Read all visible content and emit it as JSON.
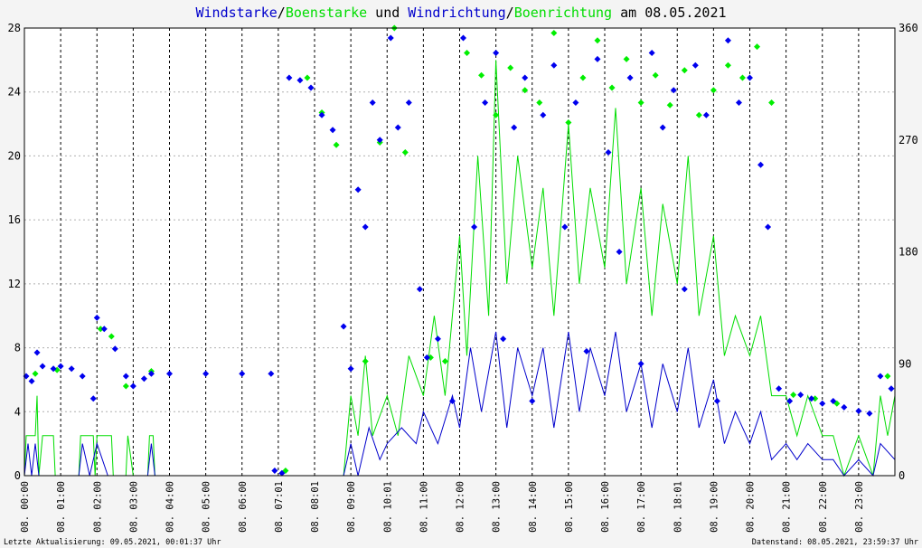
{
  "chart_data": {
    "type": "line",
    "title_parts": [
      {
        "text": "Windstarke",
        "color": "#0000cc"
      },
      {
        "text": "/",
        "color": "#000000"
      },
      {
        "text": "Boenstarke",
        "color": "#00dd00"
      },
      {
        "text": " und ",
        "color": "#000000"
      },
      {
        "text": "Windrichtung",
        "color": "#0000cc"
      },
      {
        "text": "/",
        "color": "#000000"
      },
      {
        "text": "Boenrichtung",
        "color": "#00dd00"
      },
      {
        "text": " am 08.05.2021",
        "color": "#000000"
      }
    ],
    "left_axis": {
      "min": 0,
      "max": 28,
      "ticks": [
        "0",
        "4",
        "8",
        "12",
        "16",
        "20",
        "24",
        "28"
      ]
    },
    "right_axis": {
      "min": 0,
      "max": 360,
      "ticks": [
        "0",
        "90",
        "180",
        "270",
        "360"
      ]
    },
    "x_range_hours": [
      0,
      24
    ],
    "x_ticks": [
      {
        "h": 0.0,
        "label": "08. 00:00"
      },
      {
        "h": 1.0,
        "label": "08. 01:00"
      },
      {
        "h": 2.0,
        "label": "08. 02:00"
      },
      {
        "h": 3.0,
        "label": "08. 03:00"
      },
      {
        "h": 4.0,
        "label": "08. 04:00"
      },
      {
        "h": 5.0,
        "label": "08. 05:00"
      },
      {
        "h": 6.0,
        "label": "08. 06:00"
      },
      {
        "h": 7.0,
        "label": "08. 07:01"
      },
      {
        "h": 8.0,
        "label": "08. 08:01"
      },
      {
        "h": 9.0,
        "label": "08. 09:00"
      },
      {
        "h": 10.0,
        "label": "08. 10:01"
      },
      {
        "h": 11.0,
        "label": "08. 11:00"
      },
      {
        "h": 12.0,
        "label": "08. 12:00"
      },
      {
        "h": 13.0,
        "label": "08. 13:00"
      },
      {
        "h": 14.0,
        "label": "08. 14:00"
      },
      {
        "h": 15.0,
        "label": "08. 15:00"
      },
      {
        "h": 16.0,
        "label": "08. 16:00"
      },
      {
        "h": 17.0,
        "label": "08. 17:00"
      },
      {
        "h": 18.0,
        "label": "08. 18:01"
      },
      {
        "h": 19.0,
        "label": "08. 19:00"
      },
      {
        "h": 20.0,
        "label": "08. 20:00"
      },
      {
        "h": 21.0,
        "label": "08. 21:00"
      },
      {
        "h": 22.0,
        "label": "08. 22:00"
      },
      {
        "h": 23.0,
        "label": "08. 23:00"
      }
    ],
    "grid": true,
    "series": [
      {
        "key": "gust_speed",
        "color": "#00dd00",
        "style": "line",
        "axis": "left",
        "points": [
          [
            0,
            0
          ],
          [
            0.05,
            2.5
          ],
          [
            0.3,
            2.5
          ],
          [
            0.35,
            5
          ],
          [
            0.4,
            0
          ],
          [
            0.5,
            2.5
          ],
          [
            0.8,
            2.5
          ],
          [
            0.85,
            0
          ],
          [
            1.5,
            0
          ],
          [
            1.55,
            2.5
          ],
          [
            1.9,
            2.5
          ],
          [
            1.95,
            0
          ],
          [
            2.0,
            2.5
          ],
          [
            2.4,
            2.5
          ],
          [
            2.45,
            0
          ],
          [
            2.8,
            0
          ],
          [
            2.85,
            2.5
          ],
          [
            3.0,
            0
          ],
          [
            3.4,
            0
          ],
          [
            3.45,
            2.5
          ],
          [
            3.55,
            2.5
          ],
          [
            3.6,
            0
          ],
          [
            8.8,
            0
          ],
          [
            9.0,
            5
          ],
          [
            9.2,
            2.5
          ],
          [
            9.4,
            7.5
          ],
          [
            9.6,
            2.5
          ],
          [
            10.0,
            5
          ],
          [
            10.3,
            2.5
          ],
          [
            10.6,
            7.5
          ],
          [
            11.0,
            5
          ],
          [
            11.3,
            10
          ],
          [
            11.6,
            5
          ],
          [
            12.0,
            15
          ],
          [
            12.2,
            7.5
          ],
          [
            12.5,
            20
          ],
          [
            12.8,
            10
          ],
          [
            13.0,
            26
          ],
          [
            13.3,
            12
          ],
          [
            13.6,
            20
          ],
          [
            14.0,
            13
          ],
          [
            14.3,
            18
          ],
          [
            14.6,
            10
          ],
          [
            15.0,
            22
          ],
          [
            15.3,
            12
          ],
          [
            15.6,
            18
          ],
          [
            16.0,
            13
          ],
          [
            16.3,
            23
          ],
          [
            16.6,
            12
          ],
          [
            17.0,
            18
          ],
          [
            17.3,
            10
          ],
          [
            17.6,
            17
          ],
          [
            18.0,
            12
          ],
          [
            18.3,
            20
          ],
          [
            18.6,
            10
          ],
          [
            19.0,
            15
          ],
          [
            19.3,
            7.5
          ],
          [
            19.6,
            10
          ],
          [
            20.0,
            7.5
          ],
          [
            20.3,
            10
          ],
          [
            20.6,
            5
          ],
          [
            21.0,
            5
          ],
          [
            21.3,
            2.5
          ],
          [
            21.6,
            5
          ],
          [
            22.0,
            2.5
          ],
          [
            22.3,
            2.5
          ],
          [
            22.6,
            0
          ],
          [
            23.0,
            2.5
          ],
          [
            23.4,
            0
          ],
          [
            23.6,
            5
          ],
          [
            23.8,
            2.5
          ],
          [
            24.0,
            5
          ]
        ]
      },
      {
        "key": "wind_speed",
        "color": "#0000cc",
        "style": "line",
        "axis": "left",
        "points": [
          [
            0,
            0
          ],
          [
            0.1,
            2
          ],
          [
            0.2,
            0
          ],
          [
            0.3,
            2
          ],
          [
            0.4,
            0
          ],
          [
            0.8,
            0
          ],
          [
            1.5,
            0
          ],
          [
            1.6,
            2
          ],
          [
            1.8,
            0
          ],
          [
            2.0,
            2
          ],
          [
            2.3,
            0
          ],
          [
            3.4,
            0
          ],
          [
            3.5,
            2
          ],
          [
            3.6,
            0
          ],
          [
            8.8,
            0
          ],
          [
            9.0,
            2
          ],
          [
            9.2,
            0
          ],
          [
            9.5,
            3
          ],
          [
            9.8,
            1
          ],
          [
            10.0,
            2
          ],
          [
            10.4,
            3
          ],
          [
            10.8,
            2
          ],
          [
            11.0,
            4
          ],
          [
            11.4,
            2
          ],
          [
            11.8,
            5
          ],
          [
            12.0,
            3
          ],
          [
            12.3,
            8
          ],
          [
            12.6,
            4
          ],
          [
            13.0,
            9
          ],
          [
            13.3,
            3
          ],
          [
            13.6,
            8
          ],
          [
            14.0,
            5
          ],
          [
            14.3,
            8
          ],
          [
            14.6,
            3
          ],
          [
            15.0,
            9
          ],
          [
            15.3,
            4
          ],
          [
            15.6,
            8
          ],
          [
            16.0,
            5
          ],
          [
            16.3,
            9
          ],
          [
            16.6,
            4
          ],
          [
            17.0,
            7
          ],
          [
            17.3,
            3
          ],
          [
            17.6,
            7
          ],
          [
            18.0,
            4
          ],
          [
            18.3,
            8
          ],
          [
            18.6,
            3
          ],
          [
            19.0,
            6
          ],
          [
            19.3,
            2
          ],
          [
            19.6,
            4
          ],
          [
            20.0,
            2
          ],
          [
            20.3,
            4
          ],
          [
            20.6,
            1
          ],
          [
            21.0,
            2
          ],
          [
            21.3,
            1
          ],
          [
            21.6,
            2
          ],
          [
            22.0,
            1
          ],
          [
            22.3,
            1
          ],
          [
            22.6,
            0
          ],
          [
            23.0,
            1
          ],
          [
            23.4,
            0
          ],
          [
            23.6,
            2
          ],
          [
            24.0,
            1
          ]
        ]
      },
      {
        "key": "gust_direction",
        "color": "#00ee00",
        "style": "points",
        "axis": "right",
        "points": [
          [
            0.3,
            82
          ],
          [
            0.9,
            85
          ],
          [
            2.1,
            118
          ],
          [
            2.4,
            112
          ],
          [
            2.8,
            72
          ],
          [
            3.5,
            84
          ],
          [
            7.2,
            4
          ],
          [
            7.8,
            320
          ],
          [
            8.2,
            292
          ],
          [
            8.6,
            266
          ],
          [
            9.4,
            92
          ],
          [
            9.8,
            268
          ],
          [
            10.2,
            360
          ],
          [
            10.5,
            260
          ],
          [
            11.2,
            95
          ],
          [
            11.6,
            92
          ],
          [
            12.2,
            340
          ],
          [
            12.6,
            322
          ],
          [
            13.0,
            290
          ],
          [
            13.4,
            328
          ],
          [
            13.8,
            310
          ],
          [
            14.2,
            300
          ],
          [
            14.6,
            356
          ],
          [
            15.0,
            284
          ],
          [
            15.4,
            320
          ],
          [
            15.8,
            350
          ],
          [
            16.2,
            312
          ],
          [
            16.6,
            335
          ],
          [
            17.0,
            300
          ],
          [
            17.4,
            322
          ],
          [
            17.8,
            298
          ],
          [
            18.2,
            326
          ],
          [
            18.6,
            290
          ],
          [
            19.0,
            310
          ],
          [
            19.4,
            330
          ],
          [
            19.8,
            320
          ],
          [
            20.2,
            345
          ],
          [
            20.6,
            300
          ],
          [
            21.2,
            65
          ],
          [
            21.8,
            62
          ],
          [
            22.4,
            58
          ],
          [
            23.8,
            80
          ]
        ]
      },
      {
        "key": "wind_direction",
        "color": "#0000ee",
        "style": "points",
        "axis": "right",
        "points": [
          [
            0.05,
            80
          ],
          [
            0.2,
            76
          ],
          [
            0.35,
            99
          ],
          [
            0.5,
            88
          ],
          [
            0.8,
            86
          ],
          [
            1.0,
            88
          ],
          [
            1.3,
            86
          ],
          [
            1.6,
            80
          ],
          [
            1.9,
            62
          ],
          [
            2.0,
            127
          ],
          [
            2.2,
            118
          ],
          [
            2.5,
            102
          ],
          [
            2.8,
            80
          ],
          [
            3.0,
            72
          ],
          [
            3.3,
            78
          ],
          [
            3.5,
            82
          ],
          [
            4.0,
            82
          ],
          [
            5.0,
            82
          ],
          [
            6.0,
            82
          ],
          [
            6.8,
            82
          ],
          [
            6.9,
            4
          ],
          [
            7.1,
            2
          ],
          [
            7.3,
            320
          ],
          [
            7.6,
            318
          ],
          [
            7.9,
            312
          ],
          [
            8.2,
            290
          ],
          [
            8.5,
            278
          ],
          [
            8.8,
            120
          ],
          [
            9.0,
            86
          ],
          [
            9.2,
            230
          ],
          [
            9.4,
            200
          ],
          [
            9.6,
            300
          ],
          [
            9.8,
            270
          ],
          [
            10.1,
            352
          ],
          [
            10.3,
            280
          ],
          [
            10.6,
            300
          ],
          [
            10.9,
            150
          ],
          [
            11.1,
            95
          ],
          [
            11.4,
            110
          ],
          [
            11.8,
            60
          ],
          [
            12.1,
            352
          ],
          [
            12.4,
            200
          ],
          [
            12.7,
            300
          ],
          [
            13.0,
            340
          ],
          [
            13.2,
            110
          ],
          [
            13.5,
            280
          ],
          [
            13.8,
            320
          ],
          [
            14.0,
            60
          ],
          [
            14.3,
            290
          ],
          [
            14.6,
            330
          ],
          [
            14.9,
            200
          ],
          [
            15.2,
            300
          ],
          [
            15.5,
            100
          ],
          [
            15.8,
            335
          ],
          [
            16.1,
            260
          ],
          [
            16.4,
            180
          ],
          [
            16.7,
            320
          ],
          [
            17.0,
            90
          ],
          [
            17.3,
            340
          ],
          [
            17.6,
            280
          ],
          [
            17.9,
            310
          ],
          [
            18.2,
            150
          ],
          [
            18.5,
            330
          ],
          [
            18.8,
            290
          ],
          [
            19.1,
            60
          ],
          [
            19.4,
            350
          ],
          [
            19.7,
            300
          ],
          [
            20.0,
            320
          ],
          [
            20.3,
            250
          ],
          [
            20.5,
            200
          ],
          [
            20.8,
            70
          ],
          [
            21.1,
            60
          ],
          [
            21.4,
            65
          ],
          [
            21.7,
            62
          ],
          [
            22.0,
            58
          ],
          [
            22.3,
            60
          ],
          [
            22.6,
            55
          ],
          [
            23.0,
            52
          ],
          [
            23.3,
            50
          ],
          [
            23.6,
            80
          ],
          [
            23.9,
            70
          ]
        ]
      }
    ],
    "footer_left": "Letzte Aktualisierung: 09.05.2021, 00:01:37 Uhr",
    "footer_right": "Datenstand: 08.05.2021, 23:59:37 Uhr"
  }
}
